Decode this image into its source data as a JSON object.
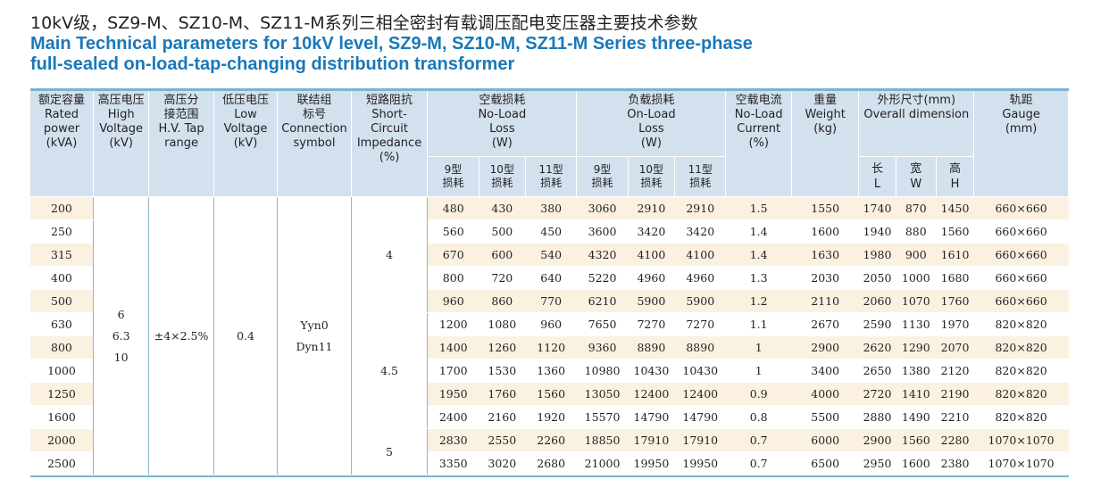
{
  "title": {
    "cn": "10kV级，SZ9-M、SZ10-M、SZ11-M系列三相全密封有载调压配电变压器主要技术参数",
    "en_line1": "Main Technical parameters for 10kV level, SZ9-M, SZ10-M, SZ11-M Series three-phase",
    "en_line2": "full-sealed on-load-tap-changing distribution transformer"
  },
  "headers": {
    "rated_power": [
      "额定容量",
      "Rated",
      "power",
      "(kVA)"
    ],
    "hv": [
      "高压电压",
      "High",
      "Voltage",
      "(kV)"
    ],
    "tap": [
      "高压分",
      "接范围",
      "H.V. Tap",
      "range"
    ],
    "lv": [
      "低压电压",
      "Low",
      "Voltage",
      "(kV)"
    ],
    "conn": [
      "联结组",
      "标号",
      "Connection",
      "symbol"
    ],
    "impedance": [
      "短路阻抗",
      "Short-",
      "Circuit",
      "Impedance",
      "(%)"
    ],
    "noload_loss": [
      "空载损耗",
      "No-Load",
      "Loss",
      "(W)"
    ],
    "load_loss": [
      "负载损耗",
      "On-Load",
      "Loss",
      "(W)"
    ],
    "noload_current": [
      "空载电流",
      "No-Load",
      "Current",
      "(%)"
    ],
    "weight": [
      "重量",
      "Weight",
      "(kg)"
    ],
    "dimension": [
      "外形尺寸(mm)",
      "Overall dimension"
    ],
    "gauge": [
      "轨距",
      "Gauge",
      "(mm)"
    ],
    "loss_sub": [
      [
        "9型",
        "损耗"
      ],
      [
        "10型",
        "损耗"
      ],
      [
        "11型",
        "损耗"
      ]
    ],
    "dim_sub": [
      [
        "长",
        "L"
      ],
      [
        "宽",
        "W"
      ],
      [
        "高",
        "H"
      ]
    ]
  },
  "merged": {
    "hv": [
      "6",
      "6.3",
      "10"
    ],
    "tap": "±4×2.5%",
    "lv": "0.4",
    "conn": [
      "Yyn0",
      "Dyn11"
    ],
    "impedance": [
      "4",
      "4.5",
      "5"
    ]
  },
  "rows": [
    {
      "power": "200",
      "nl": [
        "480",
        "430",
        "380"
      ],
      "ol": [
        "3060",
        "2910",
        "2910"
      ],
      "cur": "1.5",
      "weight": "1550",
      "dim": [
        "1740",
        "870",
        "1450"
      ],
      "gauge": "660×660"
    },
    {
      "power": "250",
      "nl": [
        "560",
        "500",
        "450"
      ],
      "ol": [
        "3600",
        "3420",
        "3420"
      ],
      "cur": "1.4",
      "weight": "1600",
      "dim": [
        "1940",
        "880",
        "1560"
      ],
      "gauge": "660×660"
    },
    {
      "power": "315",
      "nl": [
        "670",
        "600",
        "540"
      ],
      "ol": [
        "4320",
        "4100",
        "4100"
      ],
      "cur": "1.4",
      "weight": "1630",
      "dim": [
        "1980",
        "900",
        "1610"
      ],
      "gauge": "660×660"
    },
    {
      "power": "400",
      "nl": [
        "800",
        "720",
        "640"
      ],
      "ol": [
        "5220",
        "4960",
        "4960"
      ],
      "cur": "1.3",
      "weight": "2030",
      "dim": [
        "2050",
        "1000",
        "1680"
      ],
      "gauge": "660×660"
    },
    {
      "power": "500",
      "nl": [
        "960",
        "860",
        "770"
      ],
      "ol": [
        "6210",
        "5900",
        "5900"
      ],
      "cur": "1.2",
      "weight": "2110",
      "dim": [
        "2060",
        "1070",
        "1760"
      ],
      "gauge": "660×660"
    },
    {
      "power": "630",
      "nl": [
        "1200",
        "1080",
        "960"
      ],
      "ol": [
        "7650",
        "7270",
        "7270"
      ],
      "cur": "1.1",
      "weight": "2670",
      "dim": [
        "2590",
        "1130",
        "1970"
      ],
      "gauge": "820×820"
    },
    {
      "power": "800",
      "nl": [
        "1400",
        "1260",
        "1120"
      ],
      "ol": [
        "9360",
        "8890",
        "8890"
      ],
      "cur": "1",
      "weight": "2900",
      "dim": [
        "2620",
        "1290",
        "2070"
      ],
      "gauge": "820×820"
    },
    {
      "power": "1000",
      "nl": [
        "1700",
        "1530",
        "1360"
      ],
      "ol": [
        "10980",
        "10430",
        "10430"
      ],
      "cur": "1",
      "weight": "3400",
      "dim": [
        "2650",
        "1380",
        "2120"
      ],
      "gauge": "820×820"
    },
    {
      "power": "1250",
      "nl": [
        "1950",
        "1760",
        "1560"
      ],
      "ol": [
        "13050",
        "12400",
        "12400"
      ],
      "cur": "0.9",
      "weight": "4000",
      "dim": [
        "2720",
        "1410",
        "2190"
      ],
      "gauge": "820×820"
    },
    {
      "power": "1600",
      "nl": [
        "2400",
        "2160",
        "1920"
      ],
      "ol": [
        "15570",
        "14790",
        "14790"
      ],
      "cur": "0.8",
      "weight": "5500",
      "dim": [
        "2880",
        "1490",
        "2210"
      ],
      "gauge": "820×820"
    },
    {
      "power": "2000",
      "nl": [
        "2830",
        "2550",
        "2260"
      ],
      "ol": [
        "18850",
        "17910",
        "17910"
      ],
      "cur": "0.7",
      "weight": "6000",
      "dim": [
        "2900",
        "1560",
        "2280"
      ],
      "gauge": "1070×1070"
    },
    {
      "power": "2500",
      "nl": [
        "3350",
        "3020",
        "2680"
      ],
      "ol": [
        "21000",
        "19950",
        "19950"
      ],
      "cur": "0.7",
      "weight": "6500",
      "dim": [
        "2950",
        "1600",
        "2380"
      ],
      "gauge": "1070×1070"
    }
  ]
}
